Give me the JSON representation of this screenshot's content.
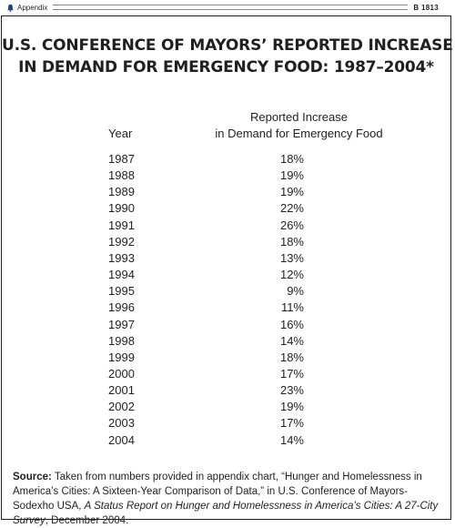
{
  "header": {
    "section_label": "Appendix",
    "page_code": "B 1813",
    "icon": "bell-icon"
  },
  "title": {
    "line1": "U.S. CONFERENCE OF MAYORS’ REPORTED INCREASE",
    "line2": "IN DEMAND FOR EMERGENCY FOOD: 1987–2004*"
  },
  "table": {
    "col_year": "Year",
    "col_demand_line1": "Reported Increase",
    "col_demand_line2": "in Demand for Emergency Food",
    "rows": [
      {
        "year": "1987",
        "value": "18%"
      },
      {
        "year": "1988",
        "value": "19%"
      },
      {
        "year": "1989",
        "value": "19%"
      },
      {
        "year": "1990",
        "value": "22%"
      },
      {
        "year": "1991",
        "value": "26%"
      },
      {
        "year": "1992",
        "value": "18%"
      },
      {
        "year": "1993",
        "value": "13%"
      },
      {
        "year": "1994",
        "value": "12%"
      },
      {
        "year": "1995",
        "value": "9%"
      },
      {
        "year": "1996",
        "value": "11%"
      },
      {
        "year": "1997",
        "value": "16%"
      },
      {
        "year": "1998",
        "value": "14%"
      },
      {
        "year": "1999",
        "value": "18%"
      },
      {
        "year": "2000",
        "value": "17%"
      },
      {
        "year": "2001",
        "value": "23%"
      },
      {
        "year": "2002",
        "value": "19%"
      },
      {
        "year": "2003",
        "value": "17%"
      },
      {
        "year": "2004",
        "value": "14%"
      }
    ]
  },
  "source": {
    "label": "Source:",
    "text1": " Taken from numbers provided in appendix chart, “Hunger and Homelessness in America’s Cities: A Sixteen-Year Comparison of Data,” in U.S. Conference of Mayors-Sodexho USA, ",
    "italic": "A Status Report on Hunger and Homelessness in America’s Cities: A 27-City Survey",
    "text2": ", December 2004."
  }
}
